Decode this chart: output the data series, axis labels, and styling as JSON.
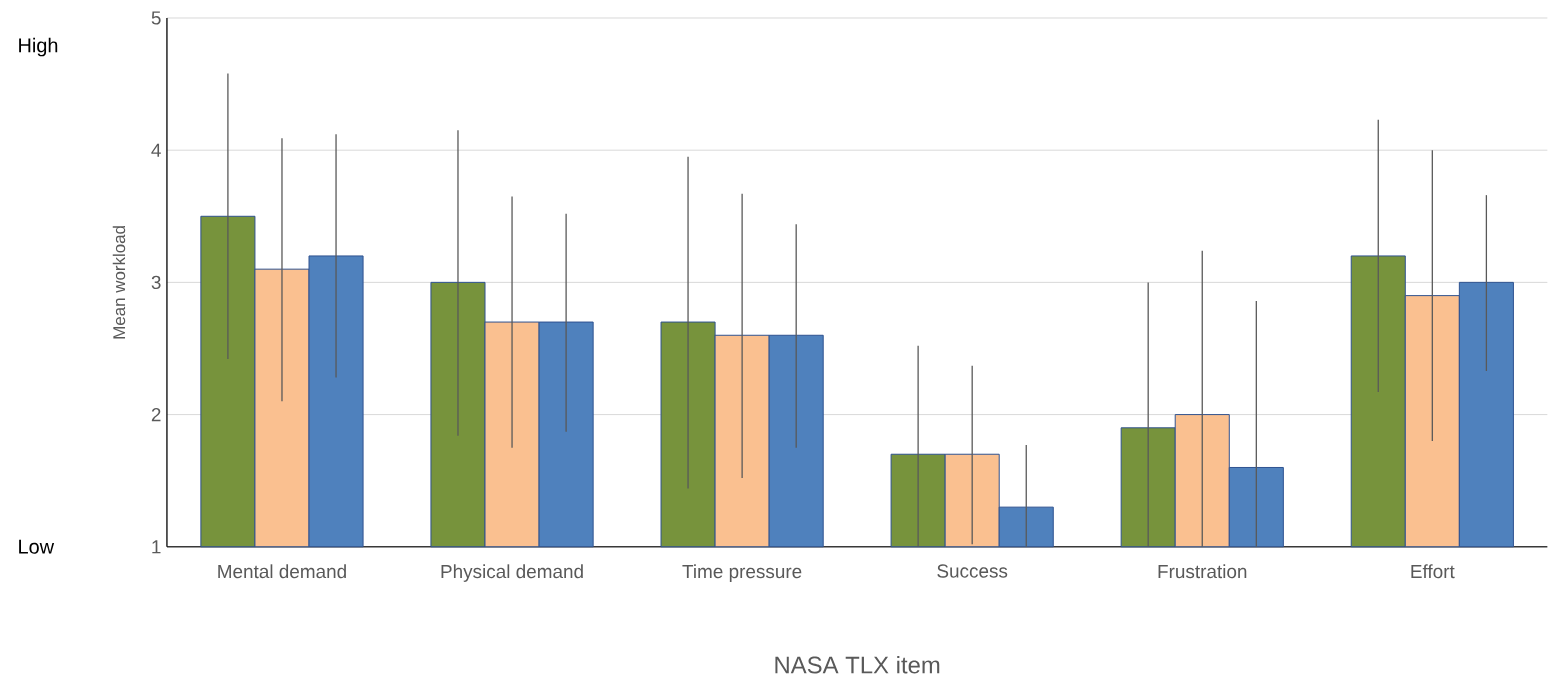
{
  "chart_data": {
    "type": "bar",
    "xlabel": "NASA TLX item",
    "ylabel": "Mean workload",
    "categories": [
      "Mental demand",
      "Physical demand",
      "Time pressure",
      "Success",
      "Frustration",
      "Effort"
    ],
    "series": [
      {
        "color": "#77933c",
        "values": [
          3.5,
          3.0,
          2.7,
          1.7,
          1.9,
          3.2
        ],
        "errors": [
          [
            2.42,
            4.58
          ],
          [
            1.84,
            4.15
          ],
          [
            1.44,
            3.95
          ],
          [
            1.0,
            2.52
          ],
          [
            1.0,
            3.0
          ],
          [
            2.17,
            4.23
          ]
        ]
      },
      {
        "color": "#fac090",
        "values": [
          3.1,
          2.7,
          2.6,
          1.7,
          2.0,
          2.9
        ],
        "errors": [
          [
            2.1,
            4.09
          ],
          [
            1.75,
            3.65
          ],
          [
            1.52,
            3.67
          ],
          [
            1.02,
            2.37
          ],
          [
            1.0,
            3.24
          ],
          [
            1.8,
            4.0
          ]
        ]
      },
      {
        "color": "#4f81bd",
        "values": [
          3.2,
          2.7,
          2.6,
          1.3,
          1.6,
          3.0
        ],
        "errors": [
          [
            2.28,
            4.12
          ],
          [
            1.87,
            3.52
          ],
          [
            1.75,
            3.44
          ],
          [
            1.0,
            1.77
          ],
          [
            1.0,
            2.86
          ],
          [
            2.33,
            3.66
          ]
        ]
      }
    ],
    "ylim": [
      1,
      5
    ],
    "yticks": [
      1,
      2,
      3,
      4,
      5
    ],
    "grid": "y",
    "annotations": [
      "High",
      "Low"
    ]
  }
}
